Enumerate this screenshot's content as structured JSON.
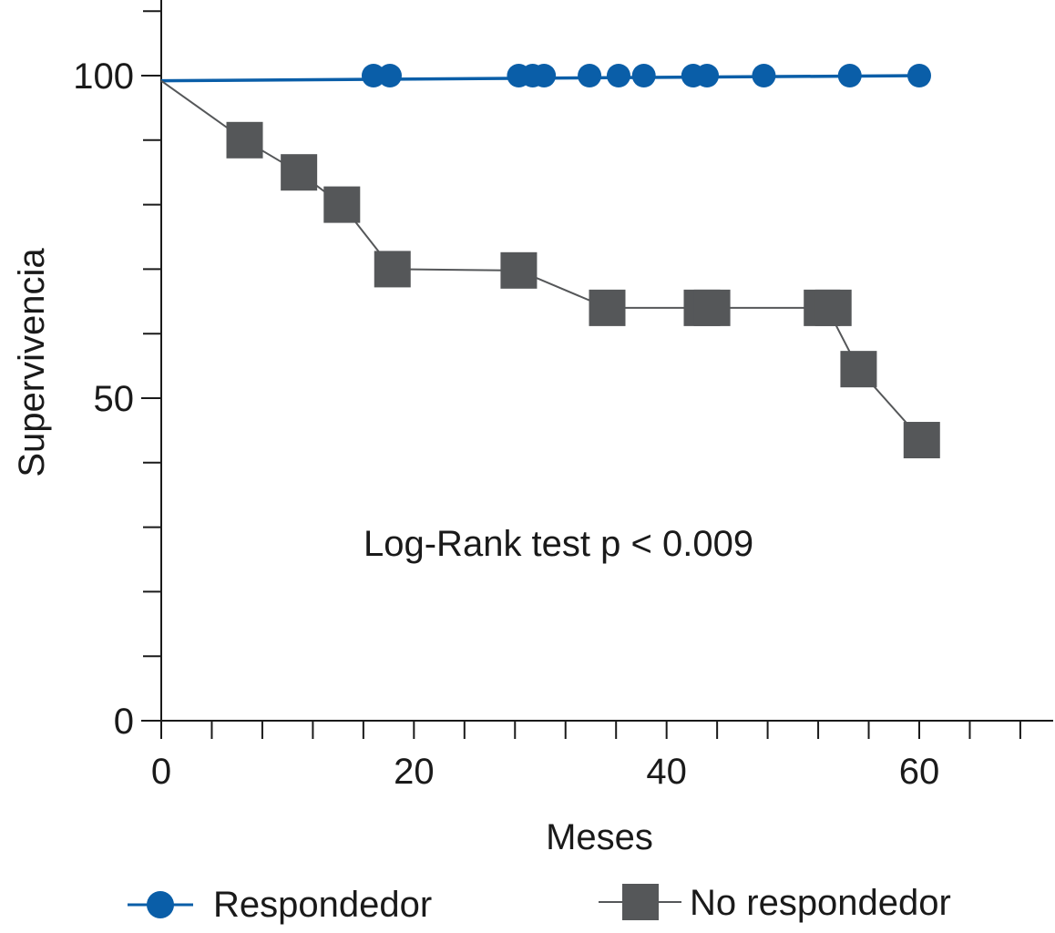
{
  "chart_data": {
    "type": "line",
    "title": "",
    "xlabel": "Meses",
    "ylabel": "Supervivencia",
    "xlim": [
      0,
      70
    ],
    "ylim": [
      0,
      110
    ],
    "x_ticks_major": [
      0,
      20,
      40,
      60
    ],
    "x_tick_step": 4,
    "y_ticks_major": [
      0,
      50,
      100
    ],
    "y_tick_step": 10,
    "annotation": "Log-Rank test p < 0.009",
    "legend_position": "bottom",
    "series": [
      {
        "name": "Respondedor",
        "color": "#0a5ea8",
        "marker": "circle",
        "line": [
          {
            "x": 0,
            "y": 99.2
          },
          {
            "x": 60,
            "y": 100
          }
        ],
        "points": [
          {
            "x": 16.8,
            "y": 100
          },
          {
            "x": 18.1,
            "y": 100
          },
          {
            "x": 28.3,
            "y": 100
          },
          {
            "x": 29.4,
            "y": 100
          },
          {
            "x": 30.3,
            "y": 100
          },
          {
            "x": 33.9,
            "y": 100
          },
          {
            "x": 36.2,
            "y": 100
          },
          {
            "x": 38.2,
            "y": 100
          },
          {
            "x": 42.1,
            "y": 100
          },
          {
            "x": 43.2,
            "y": 100
          },
          {
            "x": 47.7,
            "y": 100
          },
          {
            "x": 54.5,
            "y": 100
          },
          {
            "x": 60.0,
            "y": 100
          }
        ]
      },
      {
        "name": "No respondedor",
        "color": "#555759",
        "marker": "square",
        "line": [
          {
            "x": 0,
            "y": 99.2
          },
          {
            "x": 6.6,
            "y": 90
          },
          {
            "x": 10.9,
            "y": 85
          },
          {
            "x": 14.3,
            "y": 80
          },
          {
            "x": 18.3,
            "y": 70
          },
          {
            "x": 28.3,
            "y": 69.8
          },
          {
            "x": 35.3,
            "y": 64
          },
          {
            "x": 52.7,
            "y": 64
          },
          {
            "x": 55.2,
            "y": 54.5
          },
          {
            "x": 60.2,
            "y": 43.5
          }
        ],
        "points": [
          {
            "x": 6.6,
            "y": 90
          },
          {
            "x": 10.9,
            "y": 85
          },
          {
            "x": 14.3,
            "y": 80
          },
          {
            "x": 18.3,
            "y": 70
          },
          {
            "x": 28.3,
            "y": 69.8
          },
          {
            "x": 35.3,
            "y": 64
          },
          {
            "x": 42.8,
            "y": 64
          },
          {
            "x": 43.6,
            "y": 64
          },
          {
            "x": 52.3,
            "y": 64
          },
          {
            "x": 53.2,
            "y": 64
          },
          {
            "x": 55.2,
            "y": 54.5
          },
          {
            "x": 60.2,
            "y": 43.5
          }
        ]
      }
    ]
  }
}
